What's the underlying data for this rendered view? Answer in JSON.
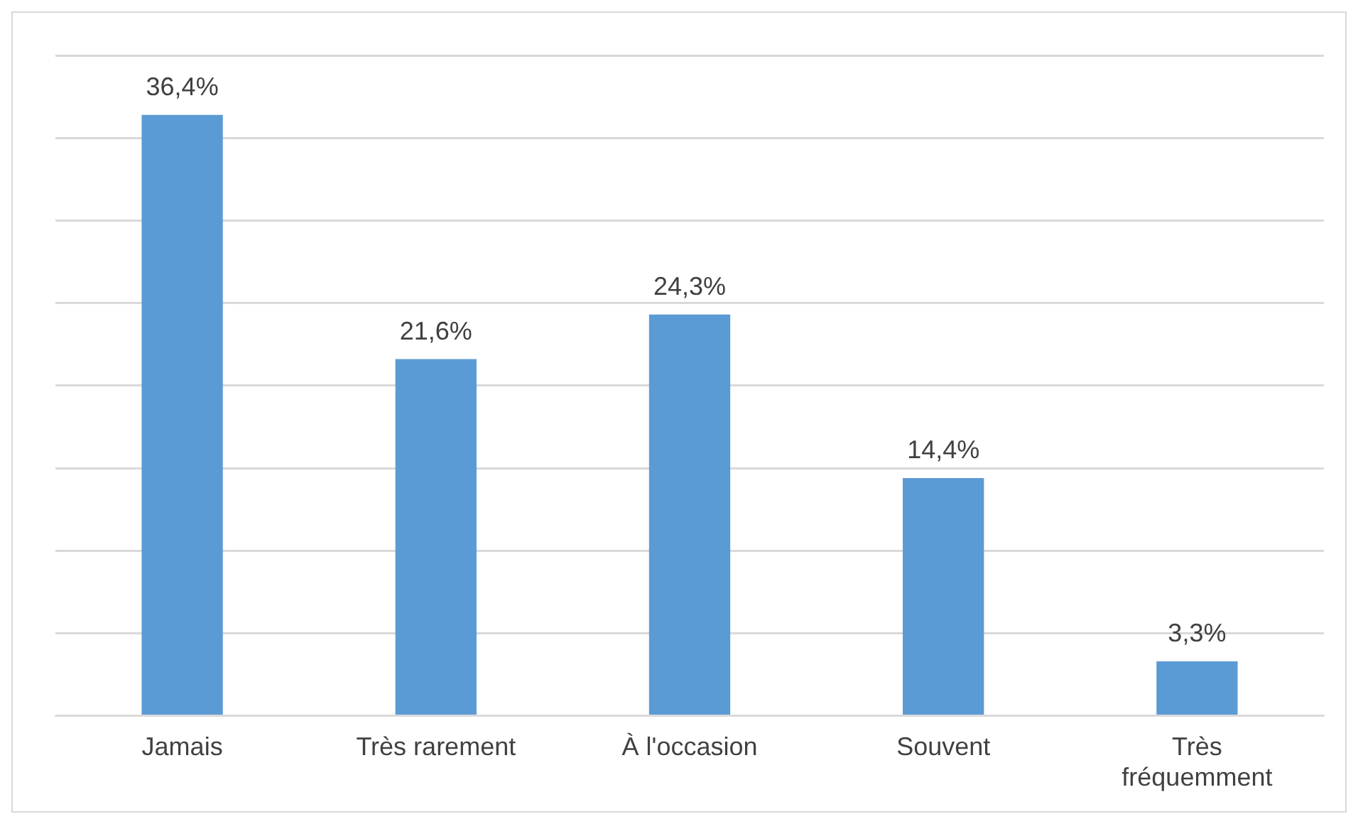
{
  "chart_data": {
    "type": "bar",
    "categories": [
      "Jamais",
      "Très rarement",
      "À l'occasion",
      "Souvent",
      "Très fréquemment"
    ],
    "values": [
      36.4,
      21.6,
      24.3,
      14.4,
      3.3
    ],
    "value_labels": [
      "36,4%",
      "21,6%",
      "24,3%",
      "14,4%",
      "3,3%"
    ],
    "color": "#5b9bd5",
    "ylim": [
      0,
      40
    ],
    "yticks": [
      {
        "value": 0,
        "label": null
      },
      {
        "value": 5,
        "label": null
      },
      {
        "value": 10,
        "label": null
      },
      {
        "value": 15,
        "label": null
      },
      {
        "value": 20,
        "label": null
      },
      {
        "value": 25,
        "label": null
      },
      {
        "value": 30,
        "label": null
      },
      {
        "value": 35,
        "label": null
      },
      {
        "value": 40,
        "label": null
      }
    ],
    "grid": "y",
    "tick_labels": "x"
  }
}
